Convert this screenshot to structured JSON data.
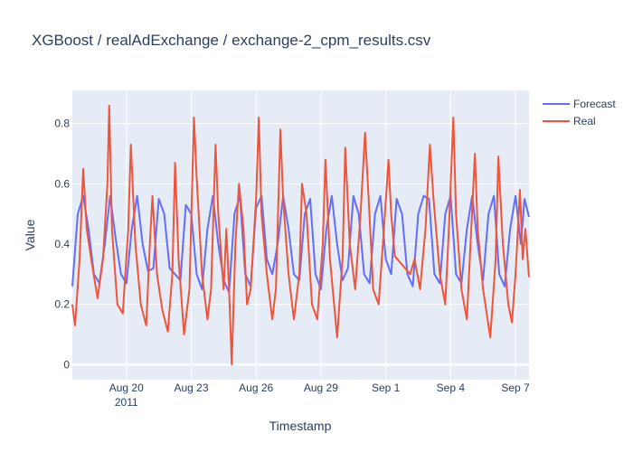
{
  "chart_data": {
    "type": "line",
    "title": "XGBoost / realAdExchange / exchange-2_cpm_results.csv",
    "xlabel": "Timestamp",
    "ylabel": "Value",
    "x_range": [
      "2011-08-17T12:00",
      "2011-09-07T15:00"
    ],
    "ylim": [
      -0.05,
      0.91
    ],
    "grid": true,
    "legend_position": "top-right",
    "x_ticks": [
      {
        "date": "2011-08-20",
        "label": "Aug 20",
        "sublabel": "2011"
      },
      {
        "date": "2011-08-23",
        "label": "Aug 23"
      },
      {
        "date": "2011-08-26",
        "label": "Aug 26"
      },
      {
        "date": "2011-08-29",
        "label": "Aug 29"
      },
      {
        "date": "2011-09-01",
        "label": "Sep 1"
      },
      {
        "date": "2011-09-04",
        "label": "Sep 4"
      },
      {
        "date": "2011-09-07",
        "label": "Sep 7"
      }
    ],
    "y_ticks": [
      0,
      0.2,
      0.4,
      0.6,
      0.8
    ],
    "series": [
      {
        "name": "Forecast",
        "color": "#636efa",
        "points": [
          [
            "2011-08-17T12:00",
            0.26
          ],
          [
            "2011-08-17T18:00",
            0.5
          ],
          [
            "2011-08-18T00:00",
            0.56
          ],
          [
            "2011-08-18T06:00",
            0.45
          ],
          [
            "2011-08-18T12:00",
            0.3
          ],
          [
            "2011-08-18T18:00",
            0.27
          ],
          [
            "2011-08-19T00:00",
            0.4
          ],
          [
            "2011-08-19T06:00",
            0.56
          ],
          [
            "2011-08-19T12:00",
            0.42
          ],
          [
            "2011-08-19T18:00",
            0.3
          ],
          [
            "2011-08-20T00:00",
            0.27
          ],
          [
            "2011-08-20T06:00",
            0.45
          ],
          [
            "2011-08-20T12:00",
            0.56
          ],
          [
            "2011-08-20T18:00",
            0.4
          ],
          [
            "2011-08-21T00:00",
            0.31
          ],
          [
            "2011-08-21T06:00",
            0.32
          ],
          [
            "2011-08-21T12:00",
            0.55
          ],
          [
            "2011-08-21T18:00",
            0.5
          ],
          [
            "2011-08-22T00:00",
            0.32
          ],
          [
            "2011-08-22T06:00",
            0.3
          ],
          [
            "2011-08-22T12:00",
            0.28
          ],
          [
            "2011-08-22T18:00",
            0.53
          ],
          [
            "2011-08-23T00:00",
            0.5
          ],
          [
            "2011-08-23T06:00",
            0.3
          ],
          [
            "2011-08-23T12:00",
            0.25
          ],
          [
            "2011-08-23T18:00",
            0.45
          ],
          [
            "2011-08-24T00:00",
            0.56
          ],
          [
            "2011-08-24T06:00",
            0.4
          ],
          [
            "2011-08-24T12:00",
            0.28
          ],
          [
            "2011-08-24T18:00",
            0.24
          ],
          [
            "2011-08-25T00:00",
            0.5
          ],
          [
            "2011-08-25T06:00",
            0.56
          ],
          [
            "2011-08-25T12:00",
            0.3
          ],
          [
            "2011-08-25T18:00",
            0.26
          ],
          [
            "2011-08-26T00:00",
            0.52
          ],
          [
            "2011-08-26T06:00",
            0.56
          ],
          [
            "2011-08-26T12:00",
            0.35
          ],
          [
            "2011-08-26T18:00",
            0.3
          ],
          [
            "2011-08-27T00:00",
            0.4
          ],
          [
            "2011-08-27T06:00",
            0.56
          ],
          [
            "2011-08-27T12:00",
            0.45
          ],
          [
            "2011-08-27T18:00",
            0.3
          ],
          [
            "2011-08-28T00:00",
            0.28
          ],
          [
            "2011-08-28T06:00",
            0.5
          ],
          [
            "2011-08-28T12:00",
            0.55
          ],
          [
            "2011-08-28T18:00",
            0.3
          ],
          [
            "2011-08-29T00:00",
            0.25
          ],
          [
            "2011-08-29T06:00",
            0.45
          ],
          [
            "2011-08-29T12:00",
            0.56
          ],
          [
            "2011-08-29T18:00",
            0.4
          ],
          [
            "2011-08-30T00:00",
            0.28
          ],
          [
            "2011-08-30T06:00",
            0.32
          ],
          [
            "2011-08-30T12:00",
            0.56
          ],
          [
            "2011-08-30T18:00",
            0.5
          ],
          [
            "2011-08-31T00:00",
            0.3
          ],
          [
            "2011-08-31T06:00",
            0.27
          ],
          [
            "2011-08-31T12:00",
            0.5
          ],
          [
            "2011-08-31T18:00",
            0.56
          ],
          [
            "2011-09-01T00:00",
            0.35
          ],
          [
            "2011-09-01T06:00",
            0.3
          ],
          [
            "2011-09-01T12:00",
            0.55
          ],
          [
            "2011-09-01T18:00",
            0.5
          ],
          [
            "2011-09-02T00:00",
            0.3
          ],
          [
            "2011-09-02T06:00",
            0.26
          ],
          [
            "2011-09-02T12:00",
            0.5
          ],
          [
            "2011-09-02T18:00",
            0.56
          ],
          [
            "2011-09-03T00:00",
            0.55
          ],
          [
            "2011-09-03T06:00",
            0.3
          ],
          [
            "2011-09-03T12:00",
            0.27
          ],
          [
            "2011-09-03T18:00",
            0.5
          ],
          [
            "2011-09-04T00:00",
            0.56
          ],
          [
            "2011-09-04T06:00",
            0.3
          ],
          [
            "2011-09-04T12:00",
            0.27
          ],
          [
            "2011-09-04T18:00",
            0.45
          ],
          [
            "2011-09-05T00:00",
            0.56
          ],
          [
            "2011-09-05T06:00",
            0.4
          ],
          [
            "2011-09-05T12:00",
            0.28
          ],
          [
            "2011-09-05T18:00",
            0.5
          ],
          [
            "2011-09-06T00:00",
            0.56
          ],
          [
            "2011-09-06T06:00",
            0.3
          ],
          [
            "2011-09-06T12:00",
            0.26
          ],
          [
            "2011-09-06T18:00",
            0.45
          ],
          [
            "2011-09-07T00:00",
            0.56
          ],
          [
            "2011-09-07T06:00",
            0.4
          ],
          [
            "2011-09-07T10:00",
            0.55
          ],
          [
            "2011-09-07T15:00",
            0.49
          ]
        ]
      },
      {
        "name": "Real",
        "color": "#ef553b",
        "points": [
          [
            "2011-08-17T12:00",
            0.2
          ],
          [
            "2011-08-17T15:00",
            0.13
          ],
          [
            "2011-08-17T20:00",
            0.35
          ],
          [
            "2011-08-18T00:00",
            0.65
          ],
          [
            "2011-08-18T04:00",
            0.45
          ],
          [
            "2011-08-18T10:00",
            0.33
          ],
          [
            "2011-08-18T16:00",
            0.22
          ],
          [
            "2011-08-18T22:00",
            0.35
          ],
          [
            "2011-08-19T03:00",
            0.6
          ],
          [
            "2011-08-19T05:00",
            0.86
          ],
          [
            "2011-08-19T08:00",
            0.45
          ],
          [
            "2011-08-19T14:00",
            0.2
          ],
          [
            "2011-08-19T20:00",
            0.17
          ],
          [
            "2011-08-20T02:00",
            0.45
          ],
          [
            "2011-08-20T05:00",
            0.73
          ],
          [
            "2011-08-20T10:00",
            0.4
          ],
          [
            "2011-08-20T16:00",
            0.2
          ],
          [
            "2011-08-20T22:00",
            0.13
          ],
          [
            "2011-08-21T02:00",
            0.4
          ],
          [
            "2011-08-21T05:00",
            0.56
          ],
          [
            "2011-08-21T10:00",
            0.3
          ],
          [
            "2011-08-21T16:00",
            0.18
          ],
          [
            "2011-08-21T22:00",
            0.11
          ],
          [
            "2011-08-22T03:00",
            0.3
          ],
          [
            "2011-08-22T06:00",
            0.67
          ],
          [
            "2011-08-22T10:00",
            0.35
          ],
          [
            "2011-08-22T16:00",
            0.1
          ],
          [
            "2011-08-22T22:00",
            0.25
          ],
          [
            "2011-08-23T03:00",
            0.82
          ],
          [
            "2011-08-23T06:00",
            0.62
          ],
          [
            "2011-08-23T12:00",
            0.3
          ],
          [
            "2011-08-23T18:00",
            0.15
          ],
          [
            "2011-08-23T22:00",
            0.25
          ],
          [
            "2011-08-24T03:00",
            0.73
          ],
          [
            "2011-08-24T06:00",
            0.5
          ],
          [
            "2011-08-24T12:00",
            0.25
          ],
          [
            "2011-08-24T15:00",
            0.45
          ],
          [
            "2011-08-24T18:00",
            0.25
          ],
          [
            "2011-08-24T21:00",
            0.0
          ],
          [
            "2011-08-25T01:00",
            0.4
          ],
          [
            "2011-08-25T05:00",
            0.6
          ],
          [
            "2011-08-25T10:00",
            0.45
          ],
          [
            "2011-08-25T14:00",
            0.2
          ],
          [
            "2011-08-25T18:00",
            0.25
          ],
          [
            "2011-08-26T00:00",
            0.55
          ],
          [
            "2011-08-26T03:00",
            0.82
          ],
          [
            "2011-08-26T06:00",
            0.5
          ],
          [
            "2011-08-26T12:00",
            0.3
          ],
          [
            "2011-08-26T18:00",
            0.15
          ],
          [
            "2011-08-26T22:00",
            0.25
          ],
          [
            "2011-08-27T03:00",
            0.78
          ],
          [
            "2011-08-27T06:00",
            0.55
          ],
          [
            "2011-08-27T12:00",
            0.3
          ],
          [
            "2011-08-27T18:00",
            0.15
          ],
          [
            "2011-08-28T00:00",
            0.3
          ],
          [
            "2011-08-28T03:00",
            0.6
          ],
          [
            "2011-08-28T08:00",
            0.5
          ],
          [
            "2011-08-28T14:00",
            0.2
          ],
          [
            "2011-08-28T20:00",
            0.15
          ],
          [
            "2011-08-29T02:00",
            0.4
          ],
          [
            "2011-08-29T05:00",
            0.68
          ],
          [
            "2011-08-29T10:00",
            0.35
          ],
          [
            "2011-08-29T18:00",
            0.09
          ],
          [
            "2011-08-30T00:00",
            0.35
          ],
          [
            "2011-08-30T03:00",
            0.72
          ],
          [
            "2011-08-30T08:00",
            0.4
          ],
          [
            "2011-08-30T14:00",
            0.25
          ],
          [
            "2011-08-30T20:00",
            0.5
          ],
          [
            "2011-08-31T01:00",
            0.77
          ],
          [
            "2011-08-31T05:00",
            0.55
          ],
          [
            "2011-08-31T10:00",
            0.25
          ],
          [
            "2011-08-31T16:00",
            0.2
          ],
          [
            "2011-08-31T22:00",
            0.45
          ],
          [
            "2011-09-01T03:00",
            0.68
          ],
          [
            "2011-09-01T06:00",
            0.5
          ],
          [
            "2011-09-01T10:00",
            0.36
          ],
          [
            "2011-09-02T03:00",
            0.3
          ],
          [
            "2011-09-02T08:00",
            0.35
          ],
          [
            "2011-09-02T14:00",
            0.25
          ],
          [
            "2011-09-02T20:00",
            0.45
          ],
          [
            "2011-09-03T01:00",
            0.73
          ],
          [
            "2011-09-03T05:00",
            0.55
          ],
          [
            "2011-09-03T12:00",
            0.3
          ],
          [
            "2011-09-03T18:00",
            0.2
          ],
          [
            "2011-09-03T22:00",
            0.45
          ],
          [
            "2011-09-04T03:00",
            0.82
          ],
          [
            "2011-09-04T06:00",
            0.5
          ],
          [
            "2011-09-04T12:00",
            0.25
          ],
          [
            "2011-09-04T18:00",
            0.15
          ],
          [
            "2011-09-04T22:00",
            0.4
          ],
          [
            "2011-09-05T03:00",
            0.7
          ],
          [
            "2011-09-05T06:00",
            0.45
          ],
          [
            "2011-09-05T12:00",
            0.25
          ],
          [
            "2011-09-05T20:00",
            0.09
          ],
          [
            "2011-09-06T02:00",
            0.35
          ],
          [
            "2011-09-06T05:00",
            0.69
          ],
          [
            "2011-09-06T10:00",
            0.4
          ],
          [
            "2011-09-06T16:00",
            0.2
          ],
          [
            "2011-09-06T20:00",
            0.14
          ],
          [
            "2011-09-07T00:00",
            0.3
          ],
          [
            "2011-09-07T05:00",
            0.58
          ],
          [
            "2011-09-07T08:00",
            0.35
          ],
          [
            "2011-09-07T11:00",
            0.45
          ],
          [
            "2011-09-07T15:00",
            0.29
          ]
        ]
      }
    ]
  }
}
